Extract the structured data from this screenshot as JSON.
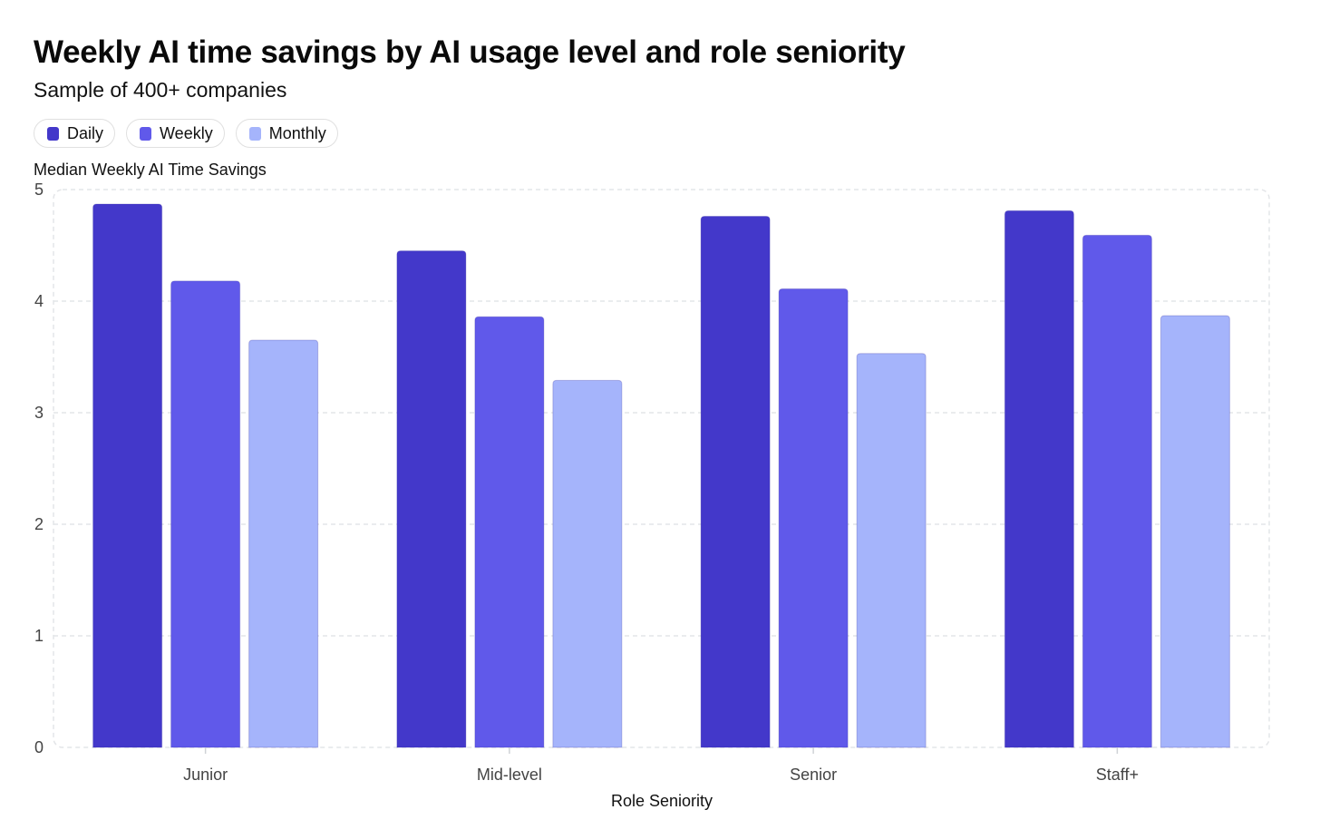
{
  "chart_data": {
    "type": "bar",
    "title": "Weekly AI time savings by AI usage level and role seniority",
    "subtitle": "Sample of 400+ companies",
    "ylabel": "Median Weekly AI Time Savings",
    "xlabel": "Role Seniority",
    "ylim": [
      0,
      5
    ],
    "yticks": [
      "0",
      "1",
      "2",
      "3",
      "4",
      "5"
    ],
    "categories": [
      "Junior",
      "Mid-level",
      "Senior",
      "Staff+"
    ],
    "grid": true,
    "legend_position": "top-left",
    "series": [
      {
        "name": "Daily",
        "color": "#4338ca",
        "values": [
          4.87,
          4.45,
          4.76,
          4.81
        ]
      },
      {
        "name": "Weekly",
        "color": "#6059ea",
        "values": [
          4.18,
          3.86,
          4.11,
          4.59
        ]
      },
      {
        "name": "Monthly",
        "color": "#a5b4fb",
        "values": [
          3.65,
          3.29,
          3.53,
          3.87
        ]
      }
    ]
  }
}
